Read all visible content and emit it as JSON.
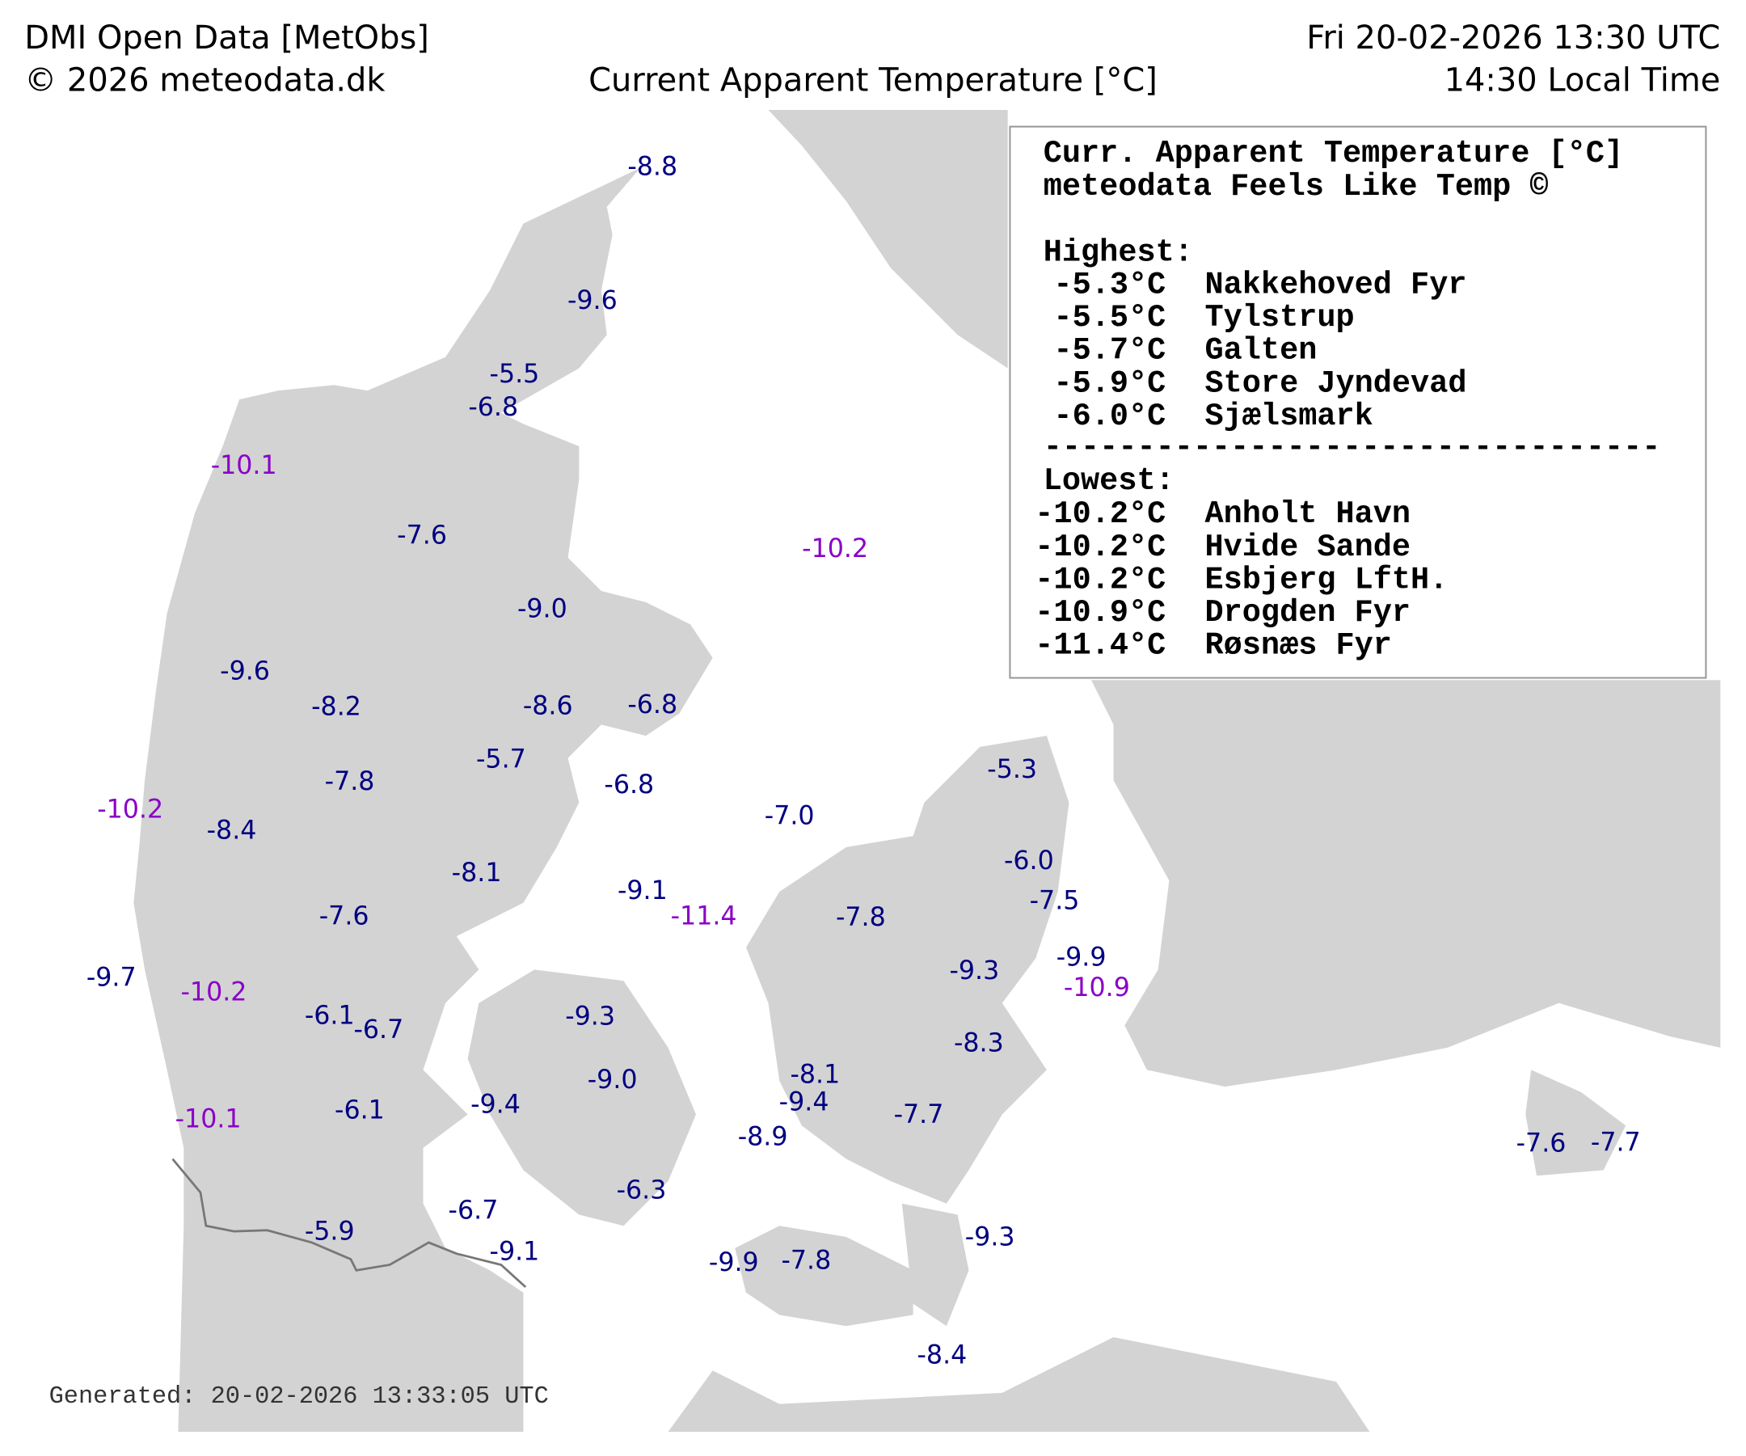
{
  "header": {
    "source": "DMI Open Data [MetObs]",
    "copyright": "© 2026 meteodata.dk",
    "title": "Current Apparent Temperature [°C]",
    "datetime_utc": "Fri 20-02-2026 13:30 UTC",
    "local_time": "14:30 Local Time"
  },
  "legend": {
    "title": "Curr. Apparent Temperature [°C]",
    "subtitle": "meteodata Feels Like Temp ©",
    "highest_label": "Highest:",
    "highest": [
      {
        "value": "-5.3°C",
        "station": "Nakkehoved Fyr"
      },
      {
        "value": "-5.5°C",
        "station": "Tylstrup"
      },
      {
        "value": "-5.7°C",
        "station": "Galten"
      },
      {
        "value": "-5.9°C",
        "station": "Store Jyndevad"
      },
      {
        "value": "-6.0°C",
        "station": "Sjælsmark"
      }
    ],
    "separator": "---------------------------------",
    "lowest_label": "Lowest:",
    "lowest": [
      {
        "value": "-10.2°C",
        "station": "Anholt Havn"
      },
      {
        "value": "-10.2°C",
        "station": "Hvide Sande"
      },
      {
        "value": "-10.2°C",
        "station": "Esbjerg LftH."
      },
      {
        "value": "-10.9°C",
        "station": "Drogden Fyr"
      },
      {
        "value": "-11.4°C",
        "station": "Røsnæs Fyr"
      }
    ]
  },
  "stations": [
    "-8.8",
    "-9.6",
    "-5.5",
    "-6.8",
    "-10.1",
    "-7.6",
    "-10.2",
    "-9.0",
    "-9.6",
    "-8.2",
    "-8.6",
    "-6.8",
    "-5.7",
    "-7.8",
    "-6.8",
    "-5.3",
    "-10.2",
    "-8.4",
    "-7.0",
    "-6.0",
    "-8.1",
    "-9.1",
    "-7.5",
    "-7.6",
    "-11.4",
    "-7.8",
    "-9.3",
    "-9.9",
    "-10.9",
    "-9.7",
    "-10.2",
    "-6.1",
    "-6.7",
    "-9.3",
    "-8.3",
    "-9.0",
    "-8.1",
    "-9.4",
    "-9.4",
    "-6.1",
    "-7.7",
    "-10.1",
    "-7.6",
    "-7.7",
    "-8.9",
    "-6.3",
    "-6.7",
    "-5.9",
    "-9.1",
    "-9.3",
    "-9.9",
    "-7.8",
    "-8.4"
  ],
  "footer": "Generated: 20-02-2026 13:33:05 UTC"
}
